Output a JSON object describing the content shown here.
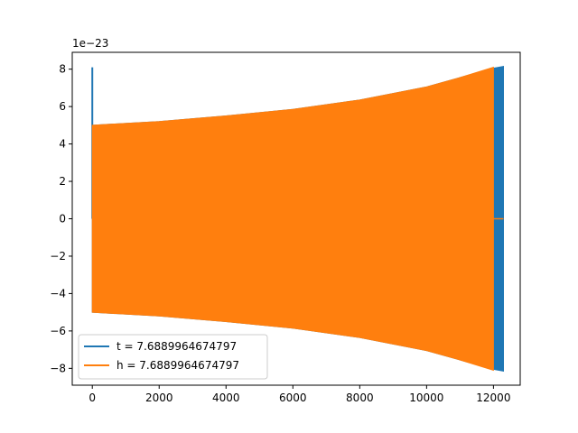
{
  "chart_data": {
    "type": "line",
    "title": "",
    "xlabel": "",
    "ylabel": "",
    "y_offset_text": "1e−23",
    "xlim": [
      -600,
      12800
    ],
    "ylim": [
      -8.9,
      8.9
    ],
    "x_ticks": [
      0,
      2000,
      4000,
      6000,
      8000,
      10000,
      12000
    ],
    "x_tick_labels": [
      "0",
      "2000",
      "4000",
      "6000",
      "8000",
      "10000",
      "12000"
    ],
    "y_ticks": [
      -8,
      -6,
      -4,
      -2,
      0,
      2,
      4,
      6,
      8
    ],
    "y_tick_labels": [
      "−8",
      "−6",
      "−4",
      "−2",
      "0",
      "2",
      "4",
      "6",
      "8"
    ],
    "grid": false,
    "legend_position": "lower-left",
    "series": [
      {
        "name": "t = 7.6889964674797",
        "color": "#1f77b4",
        "spike": {
          "x": 0,
          "y_top": 8.1
        },
        "envelope_x": [
          0,
          2000,
          4000,
          6000,
          8000,
          10000,
          11000,
          12000,
          12300
        ],
        "envelope_upper": [
          5.0,
          5.2,
          5.5,
          5.85,
          6.35,
          7.05,
          7.55,
          8.05,
          8.15
        ],
        "envelope_lower": [
          -5.0,
          -5.2,
          -5.5,
          -5.85,
          -6.35,
          -7.05,
          -7.55,
          -8.05,
          -8.15
        ]
      },
      {
        "name": "h = 7.6889964674797",
        "color": "#ff7f0e",
        "envelope_x": [
          0,
          2000,
          4000,
          6000,
          8000,
          10000,
          11000,
          12000
        ],
        "envelope_upper": [
          5.0,
          5.2,
          5.5,
          5.85,
          6.35,
          7.05,
          7.55,
          8.1
        ],
        "envelope_lower": [
          -5.0,
          -5.2,
          -5.5,
          -5.85,
          -6.35,
          -7.05,
          -7.55,
          -8.1
        ],
        "tail_x": [
          12000,
          12300
        ],
        "tail_y": 0
      }
    ]
  }
}
